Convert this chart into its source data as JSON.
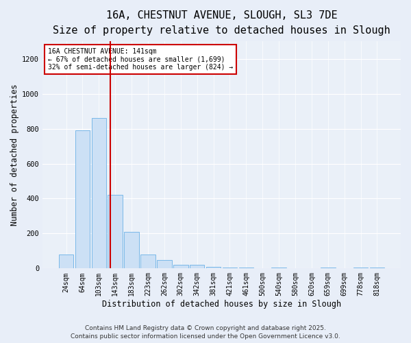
{
  "title_line1": "16A, CHESTNUT AVENUE, SLOUGH, SL3 7DE",
  "title_line2": "Size of property relative to detached houses in Slough",
  "xlabel": "Distribution of detached houses by size in Slough",
  "ylabel": "Number of detached properties",
  "categories": [
    "24sqm",
    "64sqm",
    "103sqm",
    "143sqm",
    "183sqm",
    "223sqm",
    "262sqm",
    "302sqm",
    "342sqm",
    "381sqm",
    "421sqm",
    "461sqm",
    "500sqm",
    "540sqm",
    "580sqm",
    "620sqm",
    "659sqm",
    "699sqm",
    "778sqm",
    "818sqm"
  ],
  "values": [
    80,
    790,
    860,
    420,
    210,
    80,
    50,
    20,
    20,
    10,
    5,
    5,
    0,
    5,
    0,
    0,
    5,
    0,
    5,
    5
  ],
  "bar_color": "#cce0f5",
  "bar_edge_color": "#7ab8e8",
  "red_line_x": 2.68,
  "red_line_color": "#cc0000",
  "ylim": [
    0,
    1300
  ],
  "yticks": [
    0,
    200,
    400,
    600,
    800,
    1000,
    1200
  ],
  "annotation_text": "16A CHESTNUT AVENUE: 141sqm\n← 67% of detached houses are smaller (1,699)\n32% of semi-detached houses are larger (824) →",
  "annotation_box_color": "#ffffff",
  "annotation_box_edge": "#cc0000",
  "footer_line1": "Contains HM Land Registry data © Crown copyright and database right 2025.",
  "footer_line2": "Contains public sector information licensed under the Open Government Licence v3.0.",
  "bg_color": "#e8eef8",
  "plot_bg_color": "#eaf0f8",
  "title_fontsize": 11,
  "subtitle_fontsize": 9.5,
  "tick_fontsize": 7,
  "ylabel_fontsize": 8.5,
  "xlabel_fontsize": 8.5,
  "annotation_fontsize": 7,
  "footer_fontsize": 6.5
}
